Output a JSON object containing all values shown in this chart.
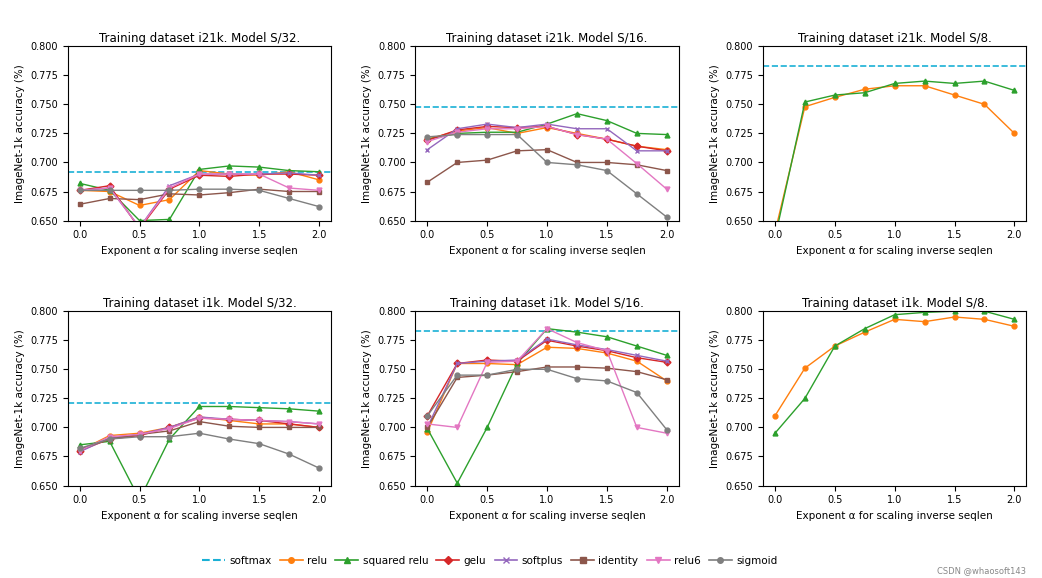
{
  "titles": [
    "Training dataset i21k. Model S/32.",
    "Training dataset i21k. Model S/16.",
    "Training dataset i21k. Model S/8.",
    "Training dataset i1k. Model S/32.",
    "Training dataset i1k. Model S/16.",
    "Training dataset i1k. Model S/8."
  ],
  "xlabel": "Exponent α for scaling inverse seqlen",
  "ylabel": "ImageNet-1k accuracy (%)",
  "ylim": [
    0.65,
    0.8
  ],
  "yticks": [
    0.65,
    0.675,
    0.7,
    0.725,
    0.75,
    0.775,
    0.8
  ],
  "colors": {
    "softmax": "#1ab0d5",
    "relu": "#ff7f0e",
    "squared_relu": "#2ca02c",
    "gelu": "#d62728",
    "softplus": "#9467bd",
    "identity": "#8c564b",
    "relu6": "#e377c2",
    "sigmoid": "#7f7f7f"
  },
  "softmax_values": [
    0.692,
    0.748,
    0.783,
    0.721,
    0.783,
    0.8
  ],
  "x_ticks": [
    0.0,
    0.25,
    0.5,
    0.75,
    1.0,
    1.25,
    1.5,
    1.75,
    2.0
  ],
  "subplot_data": {
    "i21k_s32": {
      "relu": [
        0.676,
        0.675,
        0.663,
        0.668,
        0.693,
        0.69,
        0.689,
        0.692,
        0.685
      ],
      "squared_relu": [
        0.682,
        0.676,
        0.65,
        0.651,
        0.694,
        0.697,
        0.696,
        0.693,
        0.692
      ],
      "gelu": [
        0.676,
        0.68,
        0.643,
        0.677,
        0.689,
        0.688,
        0.69,
        0.69,
        0.689
      ],
      "softplus": [
        0.676,
        0.678,
        0.644,
        0.68,
        0.69,
        0.69,
        0.69,
        0.691,
        0.689
      ],
      "identity": [
        0.664,
        0.669,
        0.668,
        0.673,
        0.672,
        0.674,
        0.677,
        0.675,
        0.675
      ],
      "relu6": [
        0.676,
        0.678,
        0.644,
        0.678,
        0.69,
        0.69,
        0.69,
        0.678,
        0.676
      ],
      "sigmoid": [
        0.676,
        0.676,
        0.676,
        0.676,
        0.677,
        0.677,
        0.676,
        0.669,
        0.662
      ]
    },
    "i21k_s16": {
      "relu": [
        0.72,
        0.727,
        0.73,
        0.725,
        0.73,
        0.725,
        0.72,
        0.714,
        0.711
      ],
      "squared_relu": [
        0.72,
        0.725,
        0.726,
        0.726,
        0.733,
        0.742,
        0.736,
        0.725,
        0.724
      ],
      "gelu": [
        0.719,
        0.728,
        0.731,
        0.73,
        0.731,
        0.724,
        0.72,
        0.714,
        0.71
      ],
      "softplus": [
        0.711,
        0.729,
        0.733,
        0.73,
        0.733,
        0.729,
        0.729,
        0.71,
        0.71
      ],
      "identity": [
        0.683,
        0.7,
        0.702,
        0.71,
        0.711,
        0.7,
        0.7,
        0.698,
        0.693
      ],
      "relu6": [
        0.718,
        0.726,
        0.729,
        0.729,
        0.731,
        0.724,
        0.72,
        0.699,
        0.677
      ],
      "sigmoid": [
        0.722,
        0.724,
        0.724,
        0.724,
        0.7,
        0.698,
        0.693,
        0.673,
        0.653
      ]
    },
    "i21k_s8": {
      "relu": [
        0.64,
        0.748,
        0.756,
        0.763,
        0.766,
        0.766,
        0.758,
        0.75,
        0.725
      ],
      "squared_relu": [
        0.635,
        0.752,
        0.758,
        0.76,
        0.768,
        0.77,
        0.768,
        0.77,
        0.762
      ]
    },
    "i1k_s32": {
      "relu": [
        0.68,
        0.693,
        0.695,
        0.7,
        0.709,
        0.706,
        0.703,
        0.703,
        0.7
      ],
      "squared_relu": [
        0.685,
        0.688,
        0.638,
        0.69,
        0.718,
        0.718,
        0.717,
        0.716,
        0.714
      ],
      "gelu": [
        0.68,
        0.69,
        0.693,
        0.7,
        0.708,
        0.707,
        0.706,
        0.703,
        0.7
      ],
      "softplus": [
        0.679,
        0.691,
        0.694,
        0.7,
        0.709,
        0.707,
        0.706,
        0.705,
        0.703
      ],
      "identity": [
        0.681,
        0.69,
        0.694,
        0.697,
        0.705,
        0.701,
        0.7,
        0.7,
        0.7
      ],
      "relu6": [
        0.68,
        0.692,
        0.694,
        0.699,
        0.708,
        0.707,
        0.706,
        0.705,
        0.703
      ],
      "sigmoid": [
        0.682,
        0.69,
        0.692,
        0.692,
        0.695,
        0.69,
        0.686,
        0.677,
        0.665
      ]
    },
    "i1k_s16": {
      "relu": [
        0.696,
        0.755,
        0.755,
        0.754,
        0.769,
        0.768,
        0.764,
        0.757,
        0.74
      ],
      "squared_relu": [
        0.699,
        0.652,
        0.7,
        0.755,
        0.785,
        0.782,
        0.778,
        0.77,
        0.762
      ],
      "gelu": [
        0.71,
        0.755,
        0.758,
        0.757,
        0.775,
        0.77,
        0.766,
        0.76,
        0.756
      ],
      "softplus": [
        0.7,
        0.755,
        0.757,
        0.758,
        0.776,
        0.771,
        0.767,
        0.762,
        0.757
      ],
      "identity": [
        0.7,
        0.743,
        0.745,
        0.748,
        0.752,
        0.752,
        0.751,
        0.748,
        0.741
      ],
      "relu6": [
        0.703,
        0.7,
        0.756,
        0.757,
        0.785,
        0.773,
        0.766,
        0.7,
        0.695
      ],
      "sigmoid": [
        0.71,
        0.745,
        0.745,
        0.75,
        0.75,
        0.742,
        0.74,
        0.73,
        0.698
      ]
    },
    "i1k_s8": {
      "relu": [
        0.71,
        0.751,
        0.77,
        0.782,
        0.793,
        0.791,
        0.795,
        0.793,
        0.787
      ],
      "squared_relu": [
        0.695,
        0.725,
        0.77,
        0.785,
        0.797,
        0.799,
        0.8,
        0.8,
        0.793
      ]
    }
  },
  "legend_entries": [
    "softmax",
    "relu",
    "squared relu",
    "gelu",
    "softplus",
    "identity",
    "relu6",
    "sigmoid"
  ]
}
